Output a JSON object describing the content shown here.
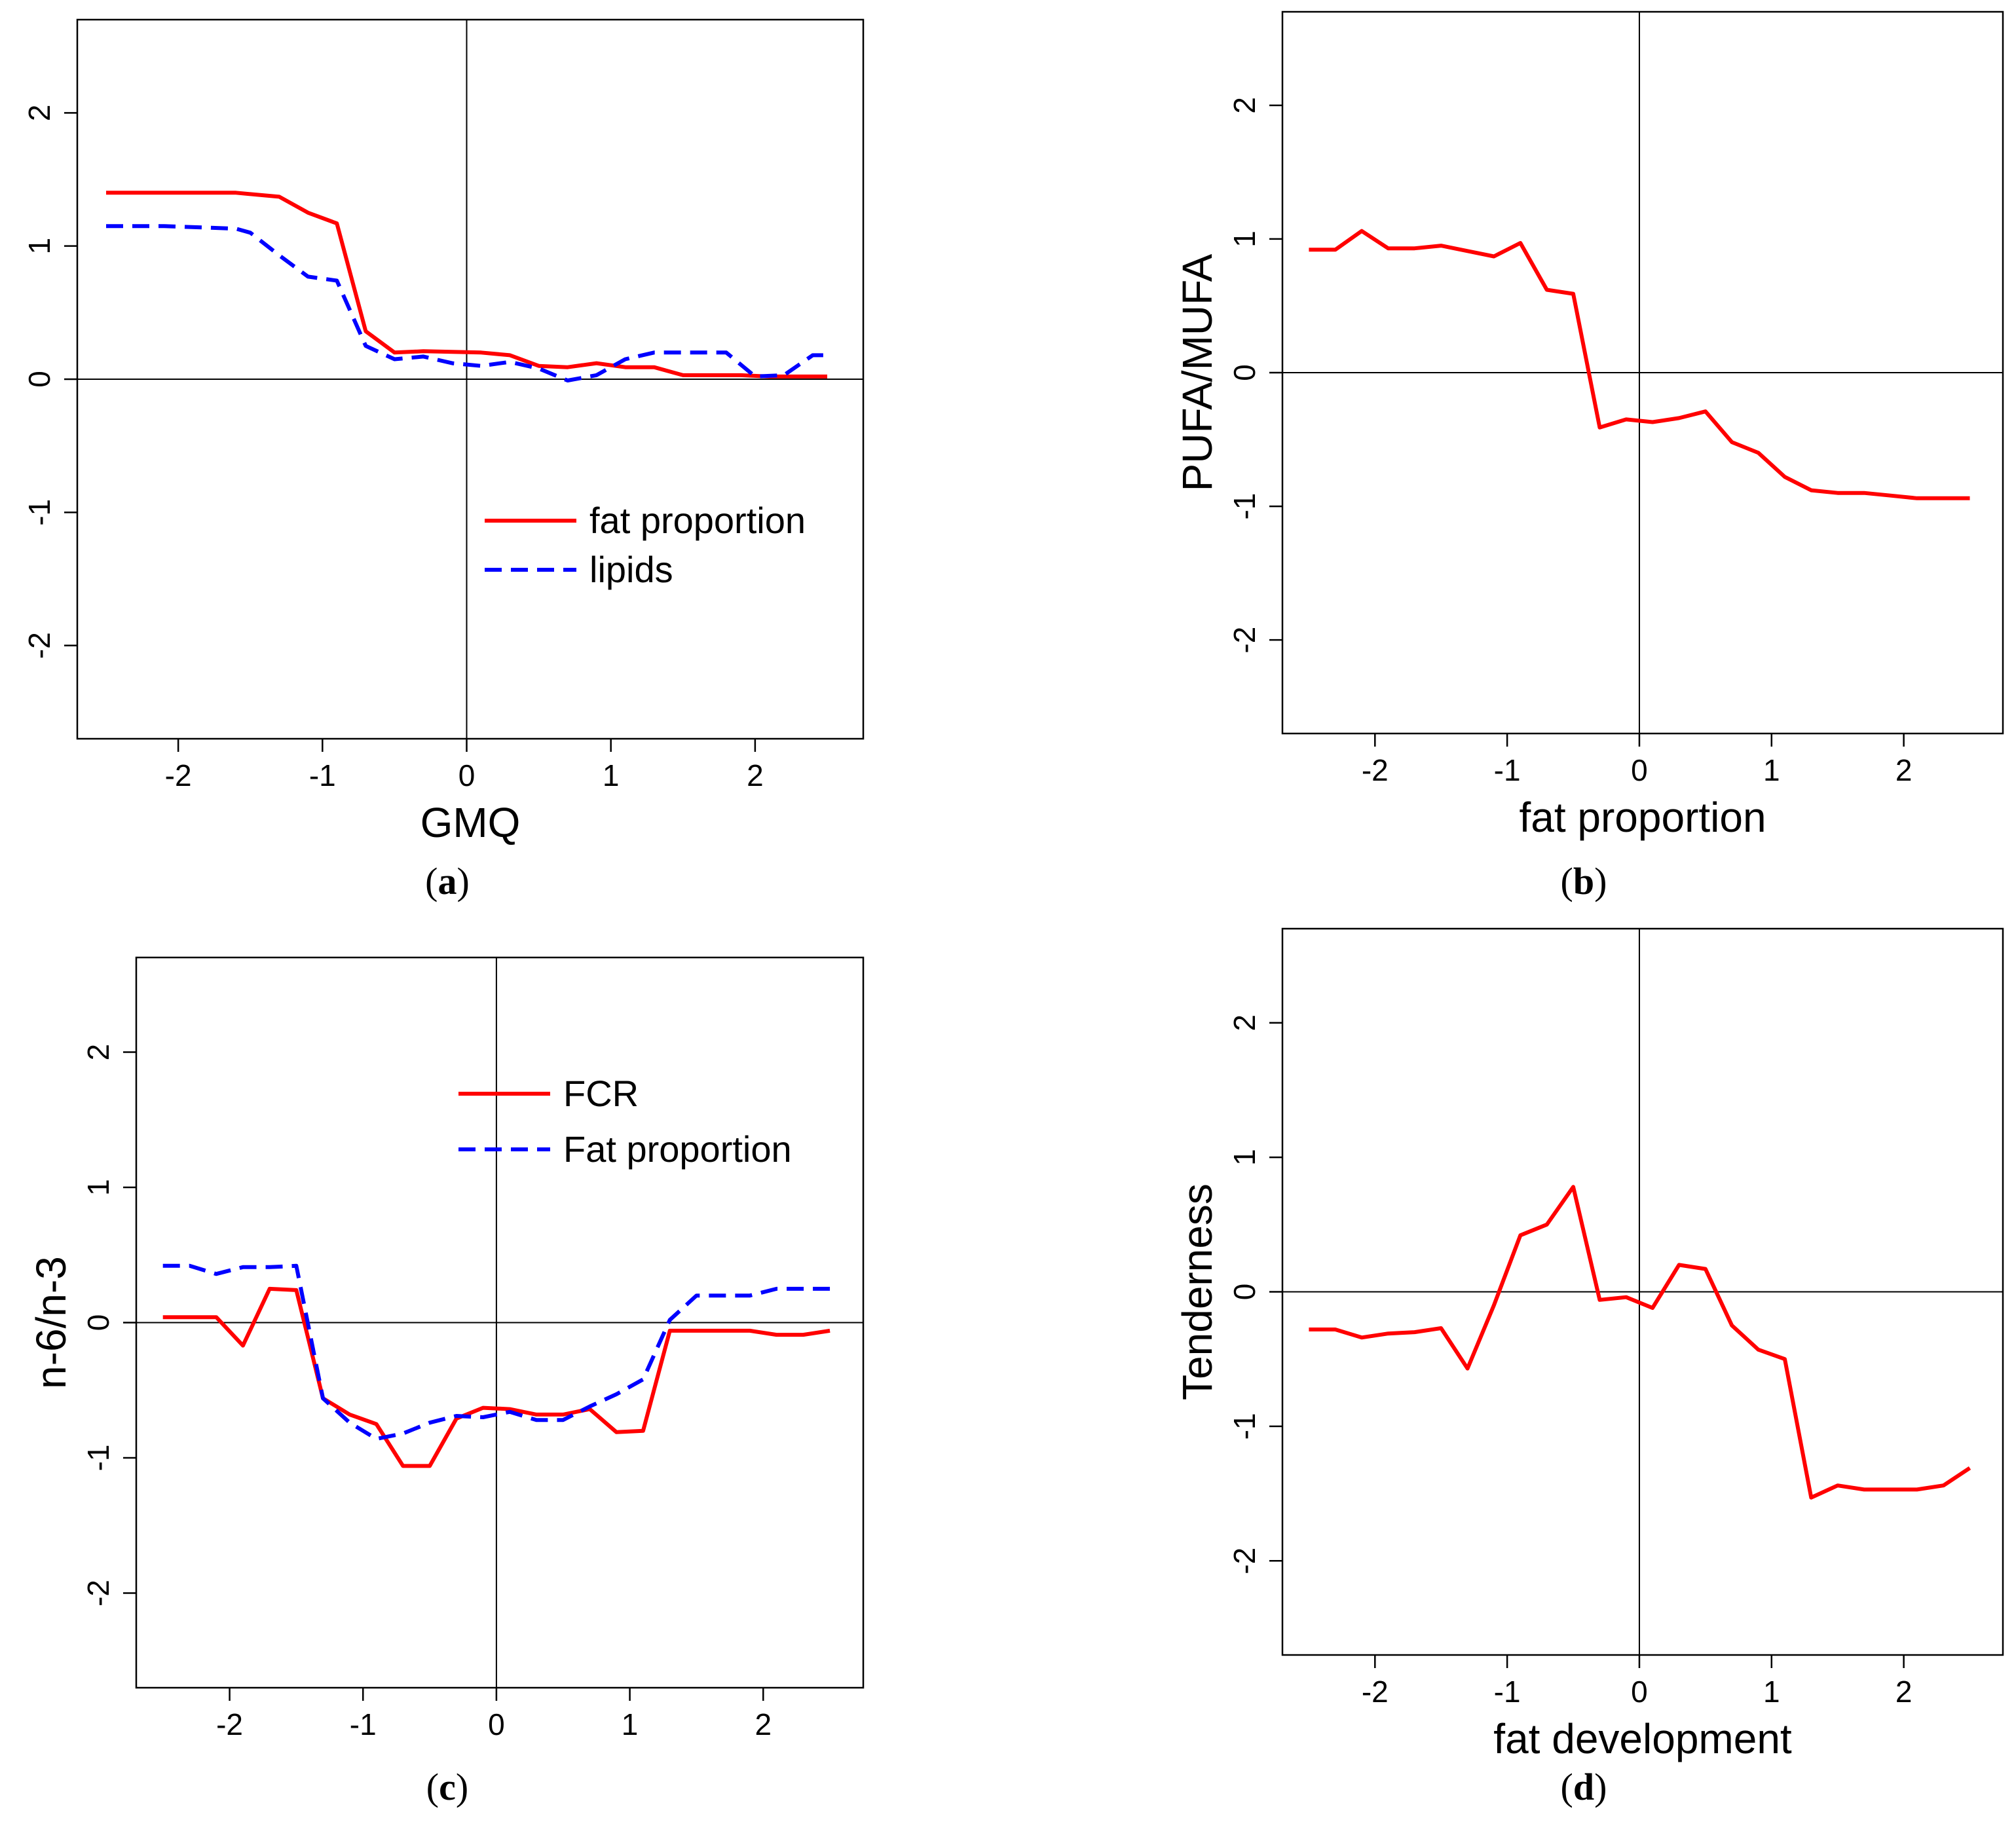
{
  "chart_data": [
    {
      "type": "line",
      "caption_letter": "a",
      "title": "",
      "xlabel": "GMQ",
      "ylabel": "",
      "xlim": [
        -2.7,
        2.75
      ],
      "ylim": [
        -2.7,
        2.7
      ],
      "xticks": [
        -2,
        -1,
        0,
        1,
        2
      ],
      "yticks": [
        -2,
        -1,
        0,
        1,
        2
      ],
      "legend": "center-right",
      "series": [
        {
          "name": "fat proportion",
          "style": "solid",
          "color": "#ff0000",
          "points": [
            [
              -2.5,
              1.4
            ],
            [
              -1.6,
              1.4
            ],
            [
              -1.4,
              1.38
            ],
            [
              -1.3,
              1.37
            ],
            [
              -1.1,
              1.25
            ],
            [
              -0.9,
              1.17
            ],
            [
              -0.7,
              0.36
            ],
            [
              -0.5,
              0.2
            ],
            [
              -0.3,
              0.21
            ],
            [
              0.1,
              0.2
            ],
            [
              0.3,
              0.18
            ],
            [
              0.5,
              0.1
            ],
            [
              0.7,
              0.09
            ],
            [
              0.9,
              0.12
            ],
            [
              1.1,
              0.09
            ],
            [
              1.3,
              0.09
            ],
            [
              1.5,
              0.03
            ],
            [
              1.7,
              0.03
            ],
            [
              1.9,
              0.03
            ],
            [
              2.1,
              0.02
            ],
            [
              2.5,
              0.02
            ]
          ]
        },
        {
          "name": "lipids",
          "style": "dashed",
          "color": "#0000ff",
          "points": [
            [
              -2.5,
              1.15
            ],
            [
              -2.1,
              1.15
            ],
            [
              -1.6,
              1.13
            ],
            [
              -1.5,
              1.1
            ],
            [
              -1.3,
              0.93
            ],
            [
              -1.1,
              0.77
            ],
            [
              -0.9,
              0.74
            ],
            [
              -0.7,
              0.25
            ],
            [
              -0.5,
              0.15
            ],
            [
              -0.3,
              0.17
            ],
            [
              -0.1,
              0.12
            ],
            [
              0.1,
              0.1
            ],
            [
              0.3,
              0.13
            ],
            [
              0.5,
              0.08
            ],
            [
              0.7,
              -0.01
            ],
            [
              0.9,
              0.03
            ],
            [
              1.1,
              0.15
            ],
            [
              1.3,
              0.2
            ],
            [
              1.8,
              0.2
            ],
            [
              2.0,
              0.02
            ],
            [
              2.2,
              0.03
            ],
            [
              2.4,
              0.18
            ],
            [
              2.5,
              0.18
            ]
          ]
        }
      ]
    },
    {
      "type": "line",
      "caption_letter": "b",
      "title": "",
      "xlabel": "fat proportion",
      "ylabel": "PUFA/MUFA",
      "xlim": [
        -2.7,
        2.75
      ],
      "ylim": [
        -2.7,
        2.7
      ],
      "xticks": [
        -2,
        -1,
        0,
        1,
        2
      ],
      "yticks": [
        -2,
        -1,
        0,
        1,
        2
      ],
      "series": [
        {
          "name": "PUFA/MUFA",
          "style": "solid",
          "color": "#ff0000",
          "points": [
            [
              -2.5,
              0.92
            ],
            [
              -2.3,
              0.92
            ],
            [
              -2.1,
              1.06
            ],
            [
              -1.9,
              0.93
            ],
            [
              -1.7,
              0.93
            ],
            [
              -1.5,
              0.95
            ],
            [
              -1.3,
              0.91
            ],
            [
              -1.1,
              0.87
            ],
            [
              -0.9,
              0.97
            ],
            [
              -0.7,
              0.62
            ],
            [
              -0.5,
              0.59
            ],
            [
              -0.3,
              -0.41
            ],
            [
              -0.1,
              -0.35
            ],
            [
              0.1,
              -0.37
            ],
            [
              0.3,
              -0.34
            ],
            [
              0.5,
              -0.29
            ],
            [
              0.7,
              -0.52
            ],
            [
              0.9,
              -0.6
            ],
            [
              1.1,
              -0.78
            ],
            [
              1.3,
              -0.88
            ],
            [
              1.5,
              -0.9
            ],
            [
              1.7,
              -0.9
            ],
            [
              1.9,
              -0.92
            ],
            [
              2.1,
              -0.94
            ],
            [
              2.5,
              -0.94
            ]
          ]
        }
      ]
    },
    {
      "type": "line",
      "caption_letter": "c",
      "title": "",
      "xlabel": "",
      "ylabel": "n-6/n-3",
      "xlim": [
        -2.7,
        2.75
      ],
      "ylim": [
        -2.7,
        2.7
      ],
      "xticks": [
        -2,
        -1,
        0,
        1,
        2
      ],
      "yticks": [
        -2,
        -1,
        0,
        1,
        2
      ],
      "legend": "top-right",
      "series": [
        {
          "name": "FCR",
          "style": "solid",
          "color": "#ff0000",
          "points": [
            [
              -2.5,
              0.04
            ],
            [
              -2.3,
              0.04
            ],
            [
              -2.1,
              0.04
            ],
            [
              -1.9,
              -0.17
            ],
            [
              -1.7,
              0.25
            ],
            [
              -1.5,
              0.24
            ],
            [
              -1.3,
              -0.56
            ],
            [
              -1.1,
              -0.68
            ],
            [
              -0.9,
              -0.75
            ],
            [
              -0.7,
              -1.06
            ],
            [
              -0.5,
              -1.06
            ],
            [
              -0.3,
              -0.71
            ],
            [
              -0.1,
              -0.63
            ],
            [
              0.1,
              -0.64
            ],
            [
              0.3,
              -0.68
            ],
            [
              0.5,
              -0.68
            ],
            [
              0.7,
              -0.64
            ],
            [
              0.9,
              -0.81
            ],
            [
              1.1,
              -0.8
            ],
            [
              1.3,
              -0.06
            ],
            [
              1.5,
              -0.06
            ],
            [
              1.9,
              -0.06
            ],
            [
              2.1,
              -0.09
            ],
            [
              2.3,
              -0.09
            ],
            [
              2.5,
              -0.06
            ]
          ]
        },
        {
          "name": "Fat proportion",
          "style": "dashed",
          "color": "#0000ff",
          "points": [
            [
              -2.5,
              0.42
            ],
            [
              -2.3,
              0.42
            ],
            [
              -2.1,
              0.36
            ],
            [
              -1.9,
              0.41
            ],
            [
              -1.7,
              0.41
            ],
            [
              -1.5,
              0.42
            ],
            [
              -1.3,
              -0.56
            ],
            [
              -1.1,
              -0.74
            ],
            [
              -0.9,
              -0.86
            ],
            [
              -0.7,
              -0.82
            ],
            [
              -0.5,
              -0.74
            ],
            [
              -0.3,
              -0.69
            ],
            [
              -0.1,
              -0.7
            ],
            [
              0.1,
              -0.66
            ],
            [
              0.3,
              -0.72
            ],
            [
              0.5,
              -0.72
            ],
            [
              0.7,
              -0.62
            ],
            [
              0.9,
              -0.53
            ],
            [
              1.1,
              -0.42
            ],
            [
              1.3,
              0.02
            ],
            [
              1.5,
              0.2
            ],
            [
              1.9,
              0.2
            ],
            [
              2.1,
              0.25
            ],
            [
              2.5,
              0.25
            ]
          ]
        }
      ]
    },
    {
      "type": "line",
      "caption_letter": "d",
      "title": "",
      "xlabel": "fat development",
      "ylabel": "Tenderness",
      "xlim": [
        -2.7,
        2.75
      ],
      "ylim": [
        -2.7,
        2.7
      ],
      "xticks": [
        -2,
        -1,
        0,
        1,
        2
      ],
      "yticks": [
        -2,
        -1,
        0,
        1,
        2
      ],
      "series": [
        {
          "name": "Tenderness",
          "style": "solid",
          "color": "#ff0000",
          "points": [
            [
              -2.5,
              -0.28
            ],
            [
              -2.3,
              -0.28
            ],
            [
              -2.1,
              -0.34
            ],
            [
              -1.9,
              -0.31
            ],
            [
              -1.7,
              -0.3
            ],
            [
              -1.5,
              -0.27
            ],
            [
              -1.3,
              -0.57
            ],
            [
              -1.1,
              -0.1
            ],
            [
              -0.9,
              0.42
            ],
            [
              -0.7,
              0.5
            ],
            [
              -0.5,
              0.78
            ],
            [
              -0.3,
              -0.06
            ],
            [
              -0.1,
              -0.04
            ],
            [
              0.1,
              -0.12
            ],
            [
              0.3,
              0.2
            ],
            [
              0.5,
              0.17
            ],
            [
              0.7,
              -0.25
            ],
            [
              0.9,
              -0.43
            ],
            [
              1.1,
              -0.5
            ],
            [
              1.3,
              -1.53
            ],
            [
              1.5,
              -1.44
            ],
            [
              1.7,
              -1.47
            ],
            [
              2.1,
              -1.47
            ],
            [
              2.3,
              -1.44
            ],
            [
              2.5,
              -1.31
            ]
          ]
        }
      ]
    }
  ]
}
